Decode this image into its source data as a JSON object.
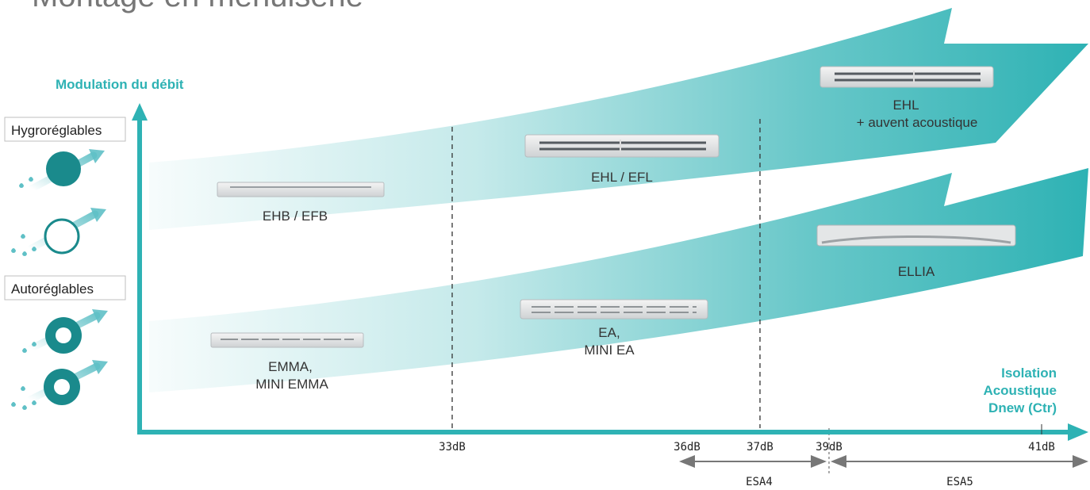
{
  "title": "Montage en menuiserie",
  "colors": {
    "accent": "#2eb2b4",
    "dark_teal": "#1a8a8c",
    "drop": "#5fc0c6",
    "axis_label": "#2eb2b4"
  },
  "y_axis": {
    "label": "Modulation du débit"
  },
  "x_axis": {
    "label_line1": "Isolation",
    "label_line2": "Acoustique",
    "label_line3": "Dnew (Ctr)"
  },
  "categories": [
    {
      "label": "Hygroréglables",
      "icons": [
        "filled-circle-icon",
        "ring-circle-icon"
      ]
    },
    {
      "label": "Autoréglables",
      "icons": [
        "donut-icon",
        "donut-icon"
      ]
    }
  ],
  "ticks": [
    "33dB",
    "36dB",
    "37dB",
    "39dB",
    "41dB"
  ],
  "ranges": [
    {
      "label": "ESA4",
      "from": "36dB",
      "to": "39dB"
    },
    {
      "label": "ESA5",
      "from": "39dB",
      "to": "41dB"
    }
  ],
  "products": [
    {
      "name": "EHB / EFB",
      "line2": "",
      "row": "hygro"
    },
    {
      "name": "EHL / EFL",
      "line2": "",
      "row": "hygro"
    },
    {
      "name": "EHL",
      "line2": "+ auvent acoustique",
      "row": "hygro"
    },
    {
      "name": "EMMA,",
      "line2": "MINI EMMA",
      "row": "auto"
    },
    {
      "name": "EA,",
      "line2": "MINI EA",
      "row": "auto"
    },
    {
      "name": "ELLIA",
      "line2": "",
      "row": "auto"
    }
  ]
}
